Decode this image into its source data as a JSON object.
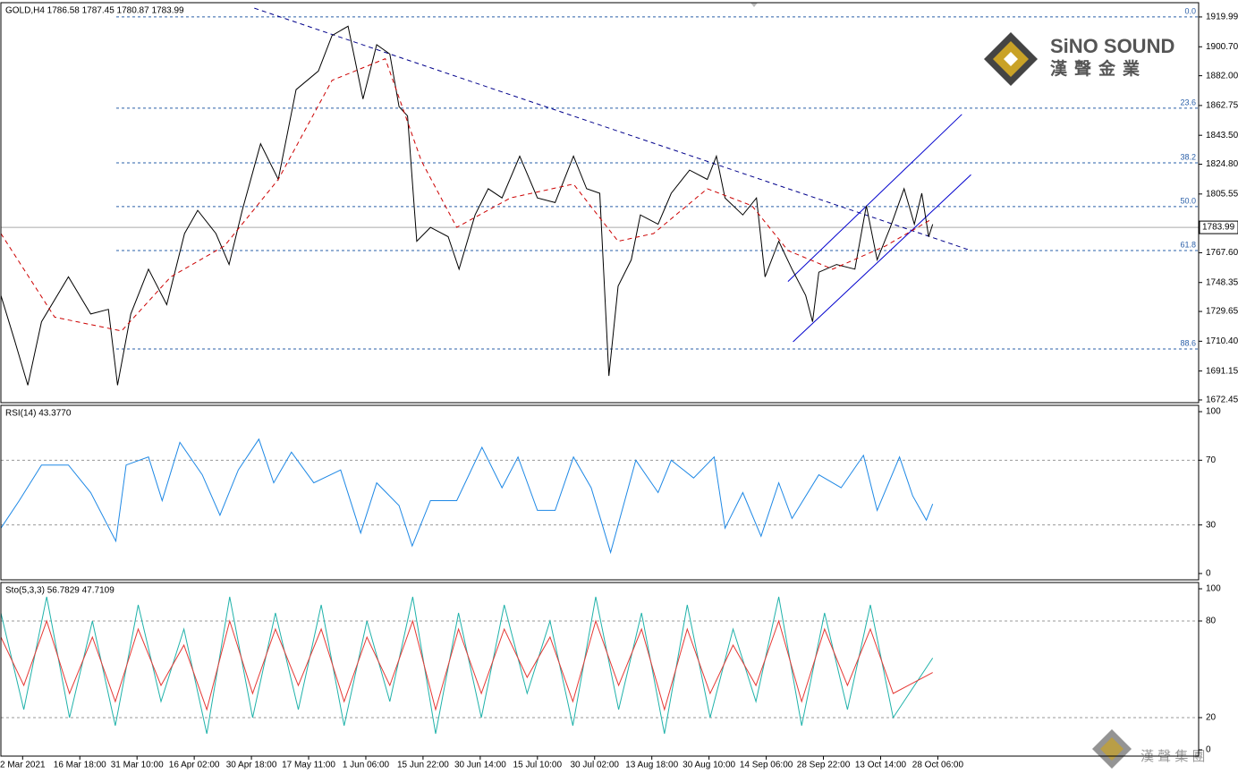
{
  "chart_data": [
    {
      "type": "line",
      "title": "GOLD,H4 1786.58 1787.45 1780.87 1783.99",
      "xlim": [
        -0.38,
        20.56
      ],
      "ylim": [
        1670.7,
        1929.2
      ],
      "xticks": [
        {
          "value": 0,
          "label": "2 Mar 2021"
        },
        {
          "value": 1,
          "label": "16 Mar 18:00"
        },
        {
          "value": 2,
          "label": "31 Mar 10:00"
        },
        {
          "value": 3,
          "label": "16 Apr 02:00"
        },
        {
          "value": 4,
          "label": "30 Apr 18:00"
        },
        {
          "value": 5,
          "label": "17 May 11:00"
        },
        {
          "value": 6,
          "label": "1 Jun 06:00"
        },
        {
          "value": 7,
          "label": "15 Jun 22:00"
        },
        {
          "value": 8,
          "label": "30 Jun 14:00"
        },
        {
          "value": 9,
          "label": "15 Jul 10:00"
        },
        {
          "value": 10,
          "label": "30 Jul 02:00"
        },
        {
          "value": 11,
          "label": "13 Aug 18:00"
        },
        {
          "value": 12,
          "label": "30 Aug 10:00"
        },
        {
          "value": 13,
          "label": "14 Sep 06:00"
        },
        {
          "value": 14,
          "label": "28 Sep 22:00"
        },
        {
          "value": 15,
          "label": "13 Oct 14:00"
        },
        {
          "value": 16,
          "label": "28 Oct 06:00"
        }
      ],
      "yticks": [
        1919.99,
        {
          "value": 1900.7,
          "label": "1900.70"
        },
        {
          "value": 1882,
          "label": "1882.00"
        },
        1862.75,
        {
          "value": 1843.5,
          "label": "1843.50"
        },
        {
          "value": 1824.8,
          "label": "1824.80"
        },
        1805.55,
        {
          "value": 1767.6,
          "label": "1767.60"
        },
        1748.35,
        1729.65,
        {
          "value": 1710.4,
          "label": "1710.40"
        },
        1691.15,
        1672.45
      ],
      "series": [
        {
          "color": "#000000",
          "x": [
            -0.38,
            -0.14,
            0.09,
            0.33,
            0.8,
            1.19,
            1.5,
            1.66,
            1.89,
            2.2,
            2.52,
            2.83,
            3.06,
            3.38,
            3.61,
            3.84,
            4.16,
            4.47,
            4.78,
            5.17,
            5.41,
            5.69,
            5.95,
            6.19,
            6.42,
            6.58,
            6.73,
            6.89,
            7.13,
            7.44,
            7.63,
            7.91,
            8.14,
            8.38,
            8.69,
            9,
            9.31,
            9.63,
            9.86,
            10.09,
            10.25,
            10.41,
            10.64,
            10.8,
            11.11,
            11.34,
            11.66,
            11.97,
            12.13,
            12.28,
            12.59,
            12.83,
            12.98,
            13.22,
            13.45,
            13.69,
            13.81,
            13.92,
            14.23,
            14.55,
            14.75,
            14.94,
            15.17,
            15.41,
            15.59,
            15.72,
            15.84,
            15.91
          ],
          "values": [
            1740,
            1711,
            1682,
            1723,
            1752,
            1728,
            1731,
            1682,
            1728,
            1757,
            1734,
            1780,
            1795,
            1780,
            1760,
            1795,
            1838,
            1815,
            1873,
            1885,
            1908,
            1914,
            1867,
            1902,
            1896,
            1862,
            1856,
            1775,
            1784,
            1778,
            1757,
            1792,
            1809,
            1803,
            1830,
            1803,
            1800,
            1830,
            1809,
            1806,
            1688,
            1746,
            1763,
            1792,
            1786,
            1806,
            1821,
            1815,
            1830,
            1803,
            1792,
            1803,
            1752,
            1775,
            1757,
            1740,
            1723,
            1755,
            1760,
            1757,
            1798,
            1763,
            1784,
            1809,
            1786,
            1806,
            1778,
            1786
          ]
        },
        {
          "color": "#cc0000",
          "dashed": true,
          "x": [
            -0.38,
            0.56,
            1.73,
            2.59,
            3.53,
            4.47,
            5.41,
            6.34,
            6.97,
            7.59,
            8.53,
            9.63,
            10.41,
            11.03,
            11.97,
            12.75,
            13.38,
            14.16,
            15.09,
            15.88
          ],
          "values": [
            1780,
            1726,
            1717,
            1752,
            1772,
            1815,
            1879,
            1893,
            1827,
            1784,
            1803,
            1812,
            1775,
            1780,
            1809,
            1798,
            1769,
            1757,
            1772,
            1789
          ]
        }
      ],
      "trendlines": [
        {
          "color": "#00008b",
          "dashed": true,
          "x": [
            4.05,
            16.58
          ],
          "values": [
            1925.7,
            1769
          ]
        },
        {
          "color": "#0000cd",
          "x": [
            13.47,
            16.58
          ],
          "values": [
            1710,
            1818
          ]
        },
        {
          "color": "#0000cd",
          "x": [
            13.38,
            16.42
          ],
          "values": [
            1749,
            1857
          ]
        }
      ],
      "fib_levels": [
        {
          "label": "0.0",
          "value": 1919.99
        },
        {
          "label": "23.6",
          "value": 1861
        },
        {
          "label": "38.2",
          "value": 1825.7
        },
        {
          "label": "50.0",
          "value": 1797.4
        },
        {
          "label": "61.8",
          "value": 1769
        },
        {
          "label": "88.6",
          "value": 1705.4
        }
      ],
      "last_price": {
        "value": 1783.99,
        "label": "1783.99"
      }
    },
    {
      "type": "line",
      "title": "RSI(14) 43.3770",
      "xlim": [
        -0.38,
        20.56
      ],
      "ylim": [
        -3.9,
        103.9
      ],
      "yticks": [
        100,
        70,
        30,
        0
      ],
      "levels": [
        70,
        30
      ],
      "series": [
        {
          "color": "#1e88e5",
          "x": [
            -0.38,
            -0.06,
            0.33,
            0.8,
            1.19,
            1.63,
            1.81,
            2.2,
            2.44,
            2.75,
            3.14,
            3.45,
            3.77,
            4.13,
            4.39,
            4.7,
            5.09,
            5.56,
            5.91,
            6.19,
            6.58,
            6.81,
            7.13,
            7.59,
            8.03,
            8.38,
            8.66,
            9,
            9.31,
            9.63,
            9.94,
            10.28,
            10.72,
            11.11,
            11.34,
            11.73,
            12.09,
            12.28,
            12.59,
            12.91,
            13.22,
            13.45,
            13.92,
            14.31,
            14.7,
            14.94,
            15.33,
            15.56,
            15.8,
            15.91
          ],
          "values": [
            28,
            45,
            67,
            67,
            50,
            20,
            67,
            72,
            45,
            81,
            61,
            36,
            64,
            83,
            56,
            75,
            56,
            64,
            25,
            56,
            42,
            17,
            45,
            45,
            78,
            53,
            72,
            39,
            39,
            72,
            53,
            13,
            70,
            50,
            70,
            59,
            72,
            28,
            50,
            23,
            56,
            34,
            61,
            53,
            73,
            39,
            72,
            48,
            33,
            43
          ]
        }
      ]
    },
    {
      "type": "line",
      "title": "Sto(5,3,3) 56.7829 47.7109",
      "xlim": [
        -0.38,
        20.56
      ],
      "ylim": [
        -3.9,
        103.9
      ],
      "yticks": [
        100,
        80,
        20,
        0
      ],
      "levels": [
        80,
        20
      ],
      "x": [
        -0.38,
        0.02,
        0.42,
        0.82,
        1.22,
        1.62,
        2.02,
        2.42,
        2.82,
        3.22,
        3.62,
        4.02,
        4.42,
        4.82,
        5.22,
        5.62,
        6.02,
        6.42,
        6.82,
        7.22,
        7.62,
        8.02,
        8.42,
        8.82,
        9.22,
        9.62,
        10.02,
        10.42,
        10.82,
        11.22,
        11.62,
        12.02,
        12.42,
        12.82,
        13.22,
        13.62,
        14.02,
        14.42,
        14.82,
        15.22,
        15.91
      ],
      "series": [
        {
          "color": "#20b2aa",
          "values": [
            85,
            25,
            95,
            20,
            80,
            15,
            90,
            30,
            75,
            10,
            95,
            20,
            85,
            25,
            90,
            15,
            80,
            30,
            95,
            10,
            85,
            20,
            90,
            35,
            80,
            15,
            95,
            25,
            85,
            10,
            90,
            20,
            75,
            30,
            95,
            15,
            85,
            25,
            90,
            20,
            57
          ]
        },
        {
          "color": "#e53935",
          "values": [
            70,
            40,
            80,
            35,
            70,
            30,
            75,
            40,
            65,
            25,
            80,
            35,
            75,
            40,
            75,
            30,
            70,
            40,
            80,
            25,
            75,
            35,
            75,
            45,
            70,
            30,
            80,
            40,
            75,
            25,
            75,
            35,
            65,
            40,
            80,
            30,
            75,
            40,
            75,
            35,
            48
          ]
        }
      ]
    }
  ],
  "branding": {
    "name": "SiNO SOUND",
    "chinese": "漢聲金業",
    "group": "漢 聲 集 團"
  }
}
